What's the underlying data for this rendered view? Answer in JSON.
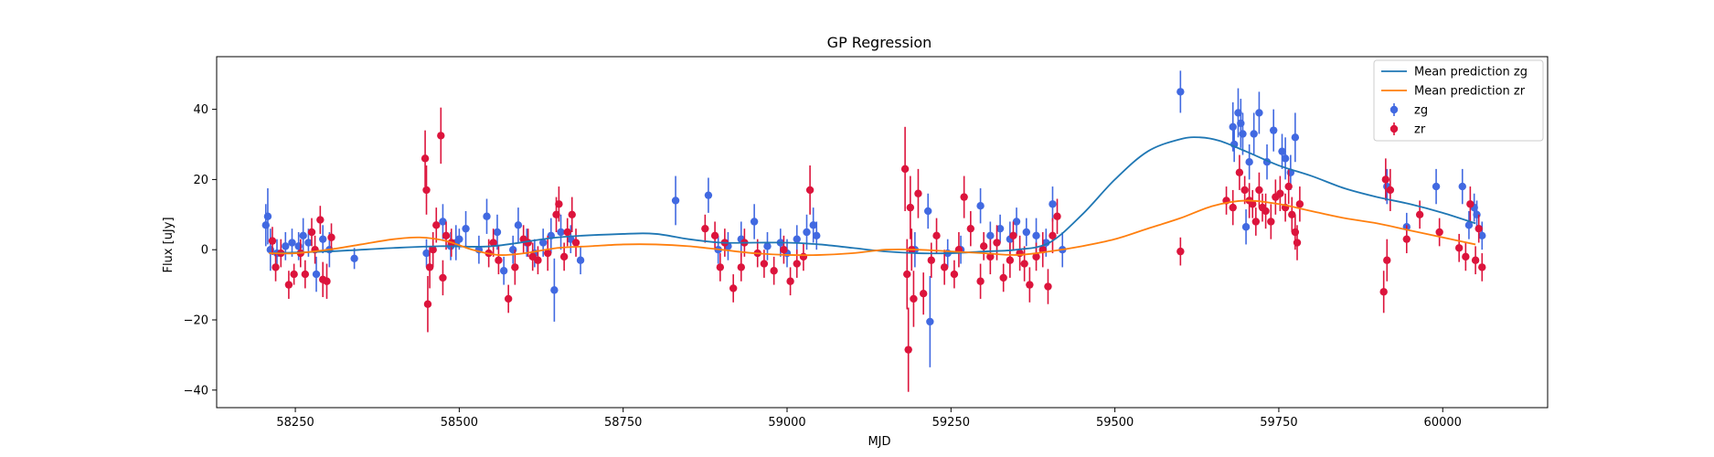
{
  "chart_data": {
    "type": "scatter",
    "title": "GP Regression",
    "xlabel": "MJD",
    "ylabel": "Flux [uJy]",
    "xlim": [
      58130,
      60160
    ],
    "ylim": [
      -45,
      55
    ],
    "xticks": [
      58250,
      58500,
      58750,
      59000,
      59250,
      59500,
      59750,
      60000
    ],
    "yticks": [
      -40,
      -20,
      0,
      20,
      40
    ],
    "legend_position": "upper-right",
    "legend": [
      {
        "label": "Mean prediction zg",
        "kind": "line",
        "color": "#1f77b4"
      },
      {
        "label": "Mean prediction zr",
        "kind": "line",
        "color": "#ff7f0e"
      },
      {
        "label": "zg",
        "kind": "errorbar",
        "color": "#4169e1"
      },
      {
        "label": "zr",
        "kind": "errorbar",
        "color": "#dc143c"
      }
    ],
    "lines": [
      {
        "name": "Mean prediction zg",
        "color": "#1f77b4",
        "x": [
          58210,
          58300,
          58400,
          58470,
          58550,
          58650,
          58750,
          58800,
          58850,
          58900,
          58950,
          59000,
          59050,
          59100,
          59150,
          59200,
          59250,
          59300,
          59350,
          59400,
          59450,
          59500,
          59550,
          59600,
          59630,
          59660,
          59700,
          59750,
          59800,
          59850,
          59900,
          59950,
          60000,
          60050
        ],
        "y": [
          -1,
          -0.5,
          0.5,
          1,
          1,
          3.5,
          4.5,
          4.5,
          3,
          2,
          2,
          2,
          1.5,
          0.5,
          -0.5,
          -1,
          -1,
          -0.5,
          0,
          2,
          10,
          20,
          28,
          31.5,
          32,
          31,
          28,
          24,
          21,
          17.5,
          15,
          13,
          10.5,
          7.5
        ]
      },
      {
        "name": "Mean prediction zr",
        "color": "#ff7f0e",
        "x": [
          58210,
          58250,
          58300,
          58350,
          58400,
          58440,
          58480,
          58520,
          58560,
          58600,
          58650,
          58700,
          58750,
          58800,
          58850,
          58900,
          58950,
          59000,
          59050,
          59100,
          59150,
          59200,
          59250,
          59300,
          59350,
          59400,
          59450,
          59500,
          59550,
          59600,
          59650,
          59700,
          59750,
          59800,
          59850,
          59900,
          59950,
          60000,
          60050
        ],
        "y": [
          -1,
          -1,
          0,
          1.5,
          3,
          3.5,
          2.5,
          0,
          -1.5,
          -1,
          0.5,
          1,
          1.5,
          1.5,
          1,
          0,
          -1,
          -1.5,
          -1.5,
          -1,
          0,
          0,
          -0.5,
          -1,
          -1.5,
          -0.5,
          1,
          3,
          6,
          9,
          12.5,
          14,
          13,
          11,
          9,
          7.5,
          5.5,
          3.5,
          1.5
        ]
      }
    ],
    "series": [
      {
        "name": "zg",
        "color": "#4169e1",
        "points": [
          [
            58205,
            7,
            6
          ],
          [
            58208,
            9.5,
            8
          ],
          [
            58212,
            0,
            6
          ],
          [
            58222,
            -1,
            4
          ],
          [
            58235,
            1,
            4
          ],
          [
            58245,
            2,
            4
          ],
          [
            58255,
            1,
            4
          ],
          [
            58262,
            4,
            5
          ],
          [
            58270,
            2,
            4
          ],
          [
            58282,
            -7,
            5
          ],
          [
            58292,
            3,
            4
          ],
          [
            58302,
            0,
            5
          ],
          [
            58340,
            -2.5,
            3
          ],
          [
            58450,
            -1,
            4
          ],
          [
            58475,
            8,
            5
          ],
          [
            58487,
            1,
            4
          ],
          [
            58495,
            2,
            5
          ],
          [
            58500,
            3,
            3
          ],
          [
            58510,
            6,
            5
          ],
          [
            58530,
            0,
            4
          ],
          [
            58542,
            9.5,
            5
          ],
          [
            58558,
            5,
            5
          ],
          [
            58568,
            -6,
            4
          ],
          [
            58582,
            0,
            4
          ],
          [
            58590,
            7,
            5
          ],
          [
            58603,
            2,
            4
          ],
          [
            58615,
            -1,
            4
          ],
          [
            58628,
            2,
            4
          ],
          [
            58640,
            4,
            5
          ],
          [
            58645,
            -11.5,
            9
          ],
          [
            58655,
            5,
            5
          ],
          [
            58670,
            3,
            4
          ],
          [
            58685,
            -3,
            4
          ],
          [
            58830,
            14,
            7
          ],
          [
            58880,
            15.5,
            5
          ],
          [
            58895,
            0,
            4
          ],
          [
            58910,
            1,
            4
          ],
          [
            58930,
            3,
            5
          ],
          [
            58950,
            8,
            5
          ],
          [
            58970,
            1,
            4
          ],
          [
            58990,
            2,
            4
          ],
          [
            59000,
            -1,
            4
          ],
          [
            59015,
            3,
            4
          ],
          [
            59030,
            5,
            5
          ],
          [
            59040,
            7,
            5
          ],
          [
            59045,
            4,
            4
          ],
          [
            59195,
            0,
            5
          ],
          [
            59215,
            11,
            5
          ],
          [
            59218,
            -20.5,
            13
          ],
          [
            59245,
            -1,
            4
          ],
          [
            59265,
            0,
            4
          ],
          [
            59295,
            12.5,
            5
          ],
          [
            59310,
            4,
            4
          ],
          [
            59325,
            6,
            4
          ],
          [
            59340,
            3,
            5
          ],
          [
            59350,
            8,
            4
          ],
          [
            59365,
            5,
            4
          ],
          [
            59380,
            4,
            5
          ],
          [
            59395,
            2,
            4
          ],
          [
            59405,
            13,
            5
          ],
          [
            59420,
            0,
            5
          ],
          [
            59600,
            45,
            6
          ],
          [
            59680,
            35,
            7
          ],
          [
            59682,
            30,
            5
          ],
          [
            59688,
            39,
            7
          ],
          [
            59692,
            36,
            7
          ],
          [
            59695,
            33,
            6
          ],
          [
            59700,
            6.5,
            5
          ],
          [
            59705,
            25,
            5
          ],
          [
            59712,
            33,
            6
          ],
          [
            59720,
            39,
            6
          ],
          [
            59732,
            25,
            5
          ],
          [
            59742,
            34,
            6
          ],
          [
            59755,
            28,
            5
          ],
          [
            59760,
            26,
            6
          ],
          [
            59768,
            22,
            5
          ],
          [
            59775,
            32,
            7
          ],
          [
            59915,
            18,
            5
          ],
          [
            59945,
            6.5,
            4
          ],
          [
            59990,
            18,
            5
          ],
          [
            60030,
            18,
            5
          ],
          [
            60040,
            7,
            4
          ],
          [
            60048,
            12,
            4
          ],
          [
            60052,
            10,
            4
          ],
          [
            60060,
            4,
            4
          ]
        ]
      },
      {
        "name": "zr",
        "color": "#dc143c",
        "points": [
          [
            58215,
            2.5,
            4
          ],
          [
            58220,
            -5,
            4
          ],
          [
            58228,
            -1,
            4
          ],
          [
            58240,
            -10,
            4
          ],
          [
            58248,
            -7,
            3
          ],
          [
            58258,
            -1,
            4
          ],
          [
            58265,
            -7,
            4
          ],
          [
            58275,
            5,
            4
          ],
          [
            58280,
            0,
            4
          ],
          [
            58288,
            8.5,
            4
          ],
          [
            58292,
            -8.5,
            5
          ],
          [
            58298,
            -9,
            5
          ],
          [
            58305,
            3.5,
            4
          ],
          [
            58448,
            26,
            8
          ],
          [
            58450,
            17,
            7
          ],
          [
            58452,
            -15.5,
            8
          ],
          [
            58455,
            -5,
            6
          ],
          [
            58460,
            0,
            5
          ],
          [
            58465,
            7,
            5
          ],
          [
            58472,
            32.5,
            8
          ],
          [
            58475,
            -8,
            5
          ],
          [
            58480,
            4,
            4
          ],
          [
            58488,
            2,
            4
          ],
          [
            58545,
            -1,
            4
          ],
          [
            58552,
            2,
            4
          ],
          [
            58560,
            -3,
            4
          ],
          [
            58575,
            -14,
            4
          ],
          [
            58585,
            -5,
            5
          ],
          [
            58598,
            3,
            4
          ],
          [
            58605,
            2,
            4
          ],
          [
            58612,
            -2,
            4
          ],
          [
            58620,
            -3,
            4
          ],
          [
            58635,
            -1,
            5
          ],
          [
            58648,
            10,
            5
          ],
          [
            58652,
            13,
            5
          ],
          [
            58660,
            -2,
            4
          ],
          [
            58665,
            5,
            4
          ],
          [
            58672,
            10,
            5
          ],
          [
            58678,
            2,
            4
          ],
          [
            58875,
            6,
            4
          ],
          [
            58890,
            4,
            4
          ],
          [
            58898,
            -5,
            4
          ],
          [
            58905,
            2,
            4
          ],
          [
            58918,
            -11,
            4
          ],
          [
            58930,
            -5,
            4
          ],
          [
            58935,
            2,
            4
          ],
          [
            58955,
            -1,
            4
          ],
          [
            58965,
            -4,
            4
          ],
          [
            58980,
            -6,
            4
          ],
          [
            58995,
            0,
            4
          ],
          [
            59005,
            -9,
            4
          ],
          [
            59015,
            -4,
            4
          ],
          [
            59025,
            -2,
            4
          ],
          [
            59035,
            17,
            7
          ],
          [
            59180,
            23,
            12
          ],
          [
            59183,
            -7,
            10
          ],
          [
            59185,
            -28.5,
            12
          ],
          [
            59188,
            12,
            9
          ],
          [
            59190,
            0,
            6
          ],
          [
            59193,
            -14,
            8
          ],
          [
            59200,
            16,
            7
          ],
          [
            59208,
            -12.5,
            6
          ],
          [
            59220,
            -3,
            5
          ],
          [
            59228,
            4,
            5
          ],
          [
            59240,
            -5,
            5
          ],
          [
            59255,
            -7,
            4
          ],
          [
            59262,
            0,
            5
          ],
          [
            59270,
            15,
            6
          ],
          [
            59280,
            6,
            5
          ],
          [
            59295,
            -9,
            5
          ],
          [
            59300,
            1,
            4
          ],
          [
            59310,
            -2,
            5
          ],
          [
            59320,
            2,
            5
          ],
          [
            59330,
            -8,
            4
          ],
          [
            59340,
            -3,
            5
          ],
          [
            59345,
            4,
            4
          ],
          [
            59355,
            -1,
            5
          ],
          [
            59362,
            -4,
            5
          ],
          [
            59370,
            -10,
            5
          ],
          [
            59380,
            -2,
            4
          ],
          [
            59390,
            0,
            5
          ],
          [
            59398,
            -10.5,
            5
          ],
          [
            59405,
            4,
            5
          ],
          [
            59412,
            9.5,
            5
          ],
          [
            59600,
            -0.5,
            4
          ],
          [
            59670,
            14,
            4
          ],
          [
            59680,
            12,
            5
          ],
          [
            59690,
            22,
            5
          ],
          [
            59698,
            17,
            4
          ],
          [
            59705,
            14,
            5
          ],
          [
            59710,
            13,
            4
          ],
          [
            59715,
            8,
            4
          ],
          [
            59720,
            17,
            5
          ],
          [
            59725,
            12,
            4
          ],
          [
            59730,
            11,
            5
          ],
          [
            59738,
            8,
            5
          ],
          [
            59745,
            15,
            5
          ],
          [
            59752,
            16,
            5
          ],
          [
            59760,
            12,
            4
          ],
          [
            59765,
            18,
            5
          ],
          [
            59770,
            10,
            5
          ],
          [
            59775,
            5,
            5
          ],
          [
            59778,
            2,
            5
          ],
          [
            59782,
            13,
            5
          ],
          [
            59910,
            -12,
            6
          ],
          [
            59913,
            20,
            6
          ],
          [
            59915,
            -3,
            6
          ],
          [
            59920,
            17,
            6
          ],
          [
            59945,
            3,
            4
          ],
          [
            59965,
            10,
            4
          ],
          [
            59995,
            5,
            4
          ],
          [
            60025,
            0.5,
            4
          ],
          [
            60035,
            -2,
            4
          ],
          [
            60042,
            13,
            5
          ],
          [
            60050,
            -3,
            4
          ],
          [
            60055,
            6,
            4
          ],
          [
            60060,
            -5,
            4
          ]
        ]
      }
    ]
  }
}
